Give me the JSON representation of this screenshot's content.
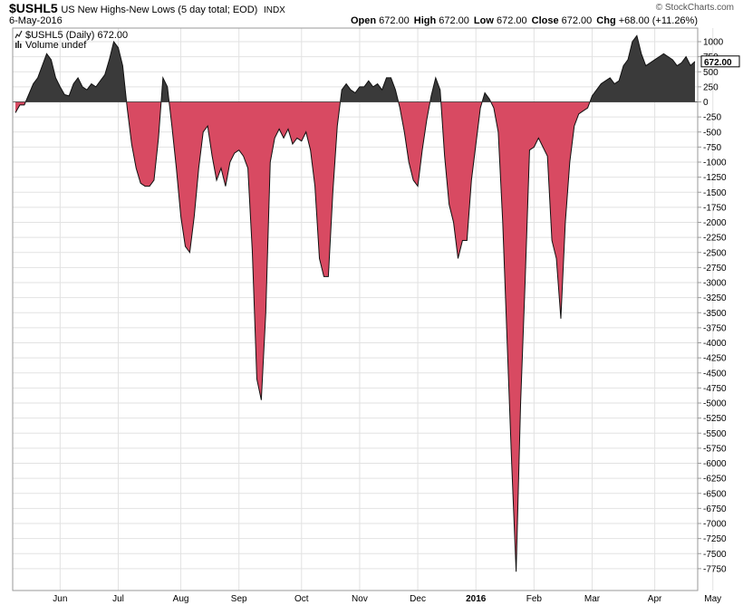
{
  "header": {
    "symbol": "$USHL5",
    "title": "US New Highs-New Lows (5 day total; EOD)",
    "exchange": "INDX",
    "date": "6-May-2016",
    "credit": "© StockCharts.com",
    "ohlc": [
      {
        "label": "Open",
        "value": "672.00"
      },
      {
        "label": "High",
        "value": "672.00"
      },
      {
        "label": "Low",
        "value": "672.00"
      },
      {
        "label": "Close",
        "value": "672.00"
      },
      {
        "label": "Chg",
        "value": "+68.00 (+11.26%)"
      }
    ],
    "chg_icon": "up-triangle-icon"
  },
  "legend": {
    "series_label": "$USHL5 (Daily) 672.00",
    "volume_label": "Volume undef",
    "series_icon": "line-chart-icon",
    "volume_icon": "bar-chart-icon"
  },
  "last_value_label": "672.00",
  "colors": {
    "positive": "#3a3a3a",
    "negative": "#d84a62",
    "line": "#111111",
    "grid": "#e2e2e2"
  },
  "chart_data": {
    "type": "area",
    "title": "US New Highs-New Lows (5 day total; EOD)",
    "ylim": [
      -7900,
      1150
    ],
    "yticks": [
      1000,
      750,
      500,
      250,
      0,
      -250,
      -500,
      -750,
      -1000,
      -1250,
      -1500,
      -1750,
      -2000,
      -2250,
      -2500,
      -2750,
      -3000,
      -3250,
      -3500,
      -3750,
      -4000,
      -4250,
      -4500,
      -4750,
      -5000,
      -5250,
      -5500,
      -5750,
      -6000,
      -6250,
      -6500,
      -6750,
      -7000,
      -7250,
      -7500,
      -7750
    ],
    "xlim": [
      0,
      158
    ],
    "xticks": [
      {
        "x": 10,
        "label": "Jun",
        "year": false
      },
      {
        "x": 23,
        "label": "Jul",
        "year": false
      },
      {
        "x": 37,
        "label": "Aug",
        "year": false
      },
      {
        "x": 50,
        "label": "Sep",
        "year": false
      },
      {
        "x": 64,
        "label": "Oct",
        "year": false
      },
      {
        "x": 77,
        "label": "Nov",
        "year": false
      },
      {
        "x": 90,
        "label": "Dec",
        "year": false
      },
      {
        "x": 103,
        "label": "2016",
        "year": true
      },
      {
        "x": 116,
        "label": "Feb",
        "year": false
      },
      {
        "x": 129,
        "label": "Mar",
        "year": false
      },
      {
        "x": 143,
        "label": "Apr",
        "year": false
      },
      {
        "x": 156,
        "label": "May",
        "year": false
      }
    ],
    "series": [
      {
        "values": [
          [
            0,
            -180
          ],
          [
            1,
            -50
          ],
          [
            2,
            -50
          ],
          [
            4,
            300
          ],
          [
            5,
            400
          ],
          [
            6,
            600
          ],
          [
            7,
            800
          ],
          [
            8,
            700
          ],
          [
            9,
            400
          ],
          [
            10,
            250
          ],
          [
            11,
            120
          ],
          [
            12,
            100
          ],
          [
            13,
            300
          ],
          [
            14,
            400
          ],
          [
            15,
            250
          ],
          [
            16,
            200
          ],
          [
            17,
            300
          ],
          [
            18,
            250
          ],
          [
            19,
            350
          ],
          [
            20,
            450
          ],
          [
            21,
            700
          ],
          [
            22,
            1000
          ],
          [
            23,
            900
          ],
          [
            24,
            600
          ],
          [
            25,
            -100
          ],
          [
            26,
            -700
          ],
          [
            27,
            -1100
          ],
          [
            28,
            -1350
          ],
          [
            29,
            -1400
          ],
          [
            30,
            -1400
          ],
          [
            31,
            -1300
          ],
          [
            32,
            -600
          ],
          [
            33,
            400
          ],
          [
            34,
            250
          ],
          [
            35,
            -400
          ],
          [
            36,
            -1100
          ],
          [
            37,
            -1900
          ],
          [
            38,
            -2400
          ],
          [
            39,
            -2500
          ],
          [
            40,
            -1900
          ],
          [
            41,
            -1100
          ],
          [
            42,
            -500
          ],
          [
            43,
            -400
          ],
          [
            44,
            -900
          ],
          [
            45,
            -1300
          ],
          [
            46,
            -1100
          ],
          [
            47,
            -1400
          ],
          [
            48,
            -1000
          ],
          [
            49,
            -850
          ],
          [
            50,
            -800
          ],
          [
            51,
            -900
          ],
          [
            52,
            -1100
          ],
          [
            53,
            -2500
          ],
          [
            54,
            -4600
          ],
          [
            55,
            -4950
          ],
          [
            56,
            -3500
          ],
          [
            57,
            -1000
          ],
          [
            58,
            -600
          ],
          [
            59,
            -450
          ],
          [
            60,
            -600
          ],
          [
            61,
            -450
          ],
          [
            62,
            -700
          ],
          [
            63,
            -600
          ],
          [
            64,
            -650
          ],
          [
            65,
            -500
          ],
          [
            66,
            -800
          ],
          [
            67,
            -1400
          ],
          [
            68,
            -2600
          ],
          [
            69,
            -2900
          ],
          [
            70,
            -2900
          ],
          [
            71,
            -1500
          ],
          [
            72,
            -400
          ],
          [
            73,
            200
          ],
          [
            74,
            300
          ],
          [
            75,
            200
          ],
          [
            76,
            150
          ],
          [
            77,
            250
          ],
          [
            78,
            250
          ],
          [
            79,
            350
          ],
          [
            80,
            250
          ],
          [
            81,
            300
          ],
          [
            82,
            200
          ],
          [
            83,
            400
          ],
          [
            84,
            400
          ],
          [
            85,
            200
          ],
          [
            86,
            -100
          ],
          [
            87,
            -500
          ],
          [
            88,
            -1000
          ],
          [
            89,
            -1300
          ],
          [
            90,
            -1400
          ],
          [
            91,
            -800
          ],
          [
            92,
            -300
          ],
          [
            93,
            100
          ],
          [
            94,
            400
          ],
          [
            95,
            200
          ],
          [
            96,
            -900
          ],
          [
            97,
            -1700
          ],
          [
            98,
            -2000
          ],
          [
            99,
            -2600
          ],
          [
            100,
            -2300
          ],
          [
            101,
            -2300
          ],
          [
            102,
            -1300
          ],
          [
            103,
            -700
          ],
          [
            104,
            -100
          ],
          [
            105,
            150
          ],
          [
            106,
            50
          ],
          [
            107,
            -100
          ],
          [
            108,
            -500
          ],
          [
            109,
            -2000
          ],
          [
            110,
            -4000
          ],
          [
            111,
            -6000
          ],
          [
            112,
            -7800
          ],
          [
            113,
            -5000
          ],
          [
            114,
            -3000
          ],
          [
            115,
            -800
          ],
          [
            116,
            -750
          ],
          [
            117,
            -600
          ],
          [
            118,
            -750
          ],
          [
            119,
            -900
          ],
          [
            120,
            -2300
          ],
          [
            121,
            -2600
          ],
          [
            122,
            -3600
          ],
          [
            123,
            -2000
          ],
          [
            124,
            -1000
          ],
          [
            125,
            -400
          ],
          [
            126,
            -200
          ],
          [
            127,
            -150
          ],
          [
            128,
            -100
          ],
          [
            129,
            100
          ],
          [
            130,
            200
          ],
          [
            131,
            300
          ],
          [
            132,
            350
          ],
          [
            133,
            400
          ],
          [
            134,
            300
          ],
          [
            135,
            350
          ],
          [
            136,
            600
          ],
          [
            137,
            700
          ],
          [
            138,
            1000
          ],
          [
            139,
            1100
          ],
          [
            140,
            800
          ],
          [
            141,
            600
          ],
          [
            142,
            650
          ],
          [
            143,
            700
          ],
          [
            144,
            750
          ],
          [
            145,
            800
          ],
          [
            146,
            750
          ],
          [
            147,
            700
          ],
          [
            148,
            600
          ],
          [
            149,
            650
          ],
          [
            150,
            750
          ],
          [
            151,
            604
          ],
          [
            152,
            672
          ]
        ]
      }
    ]
  }
}
